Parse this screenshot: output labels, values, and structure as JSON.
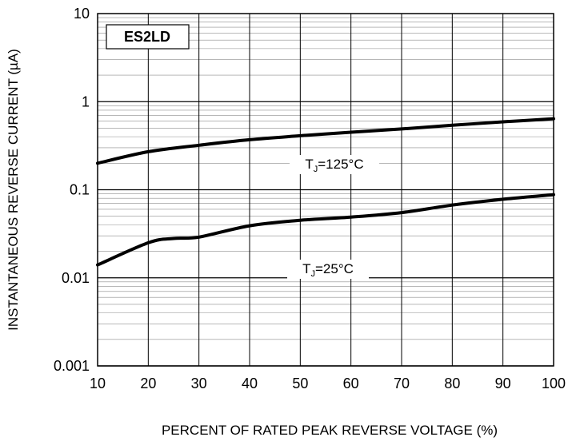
{
  "chart_data": {
    "type": "line",
    "title": "",
    "part_number": "ES2LD",
    "xlabel": "PERCENT OF RATED PEAK REVERSE VOLTAGE (%)",
    "ylabel": "INSTANTANEOUS REVERSE CURRENT (µA)",
    "xlim": [
      10,
      100
    ],
    "ylim": [
      0.001,
      10
    ],
    "yscale": "log",
    "grid": true,
    "x_ticks": [
      "10",
      "20",
      "30",
      "40",
      "50",
      "60",
      "70",
      "80",
      "90",
      "100"
    ],
    "y_ticks": [
      "0.001",
      "0.01",
      "0.1",
      "1",
      "10"
    ],
    "series": [
      {
        "name": "TJ=125°C",
        "label_main": "T",
        "label_sub": "J",
        "label_rest": "=125°C",
        "x": [
          10,
          20,
          30,
          40,
          50,
          60,
          70,
          80,
          90,
          100
        ],
        "values": [
          0.2,
          0.27,
          0.32,
          0.37,
          0.41,
          0.45,
          0.49,
          0.54,
          0.59,
          0.64
        ]
      },
      {
        "name": "TJ=25°C",
        "label_main": "T",
        "label_sub": "J",
        "label_rest": "=25°C",
        "x": [
          10,
          20,
          25,
          30,
          40,
          50,
          60,
          70,
          80,
          90,
          100
        ],
        "values": [
          0.014,
          0.025,
          0.028,
          0.029,
          0.039,
          0.045,
          0.049,
          0.055,
          0.067,
          0.078,
          0.088
        ]
      }
    ],
    "colors": {
      "line": "#000000",
      "grid": "#000000",
      "background": "#ffffff"
    }
  }
}
